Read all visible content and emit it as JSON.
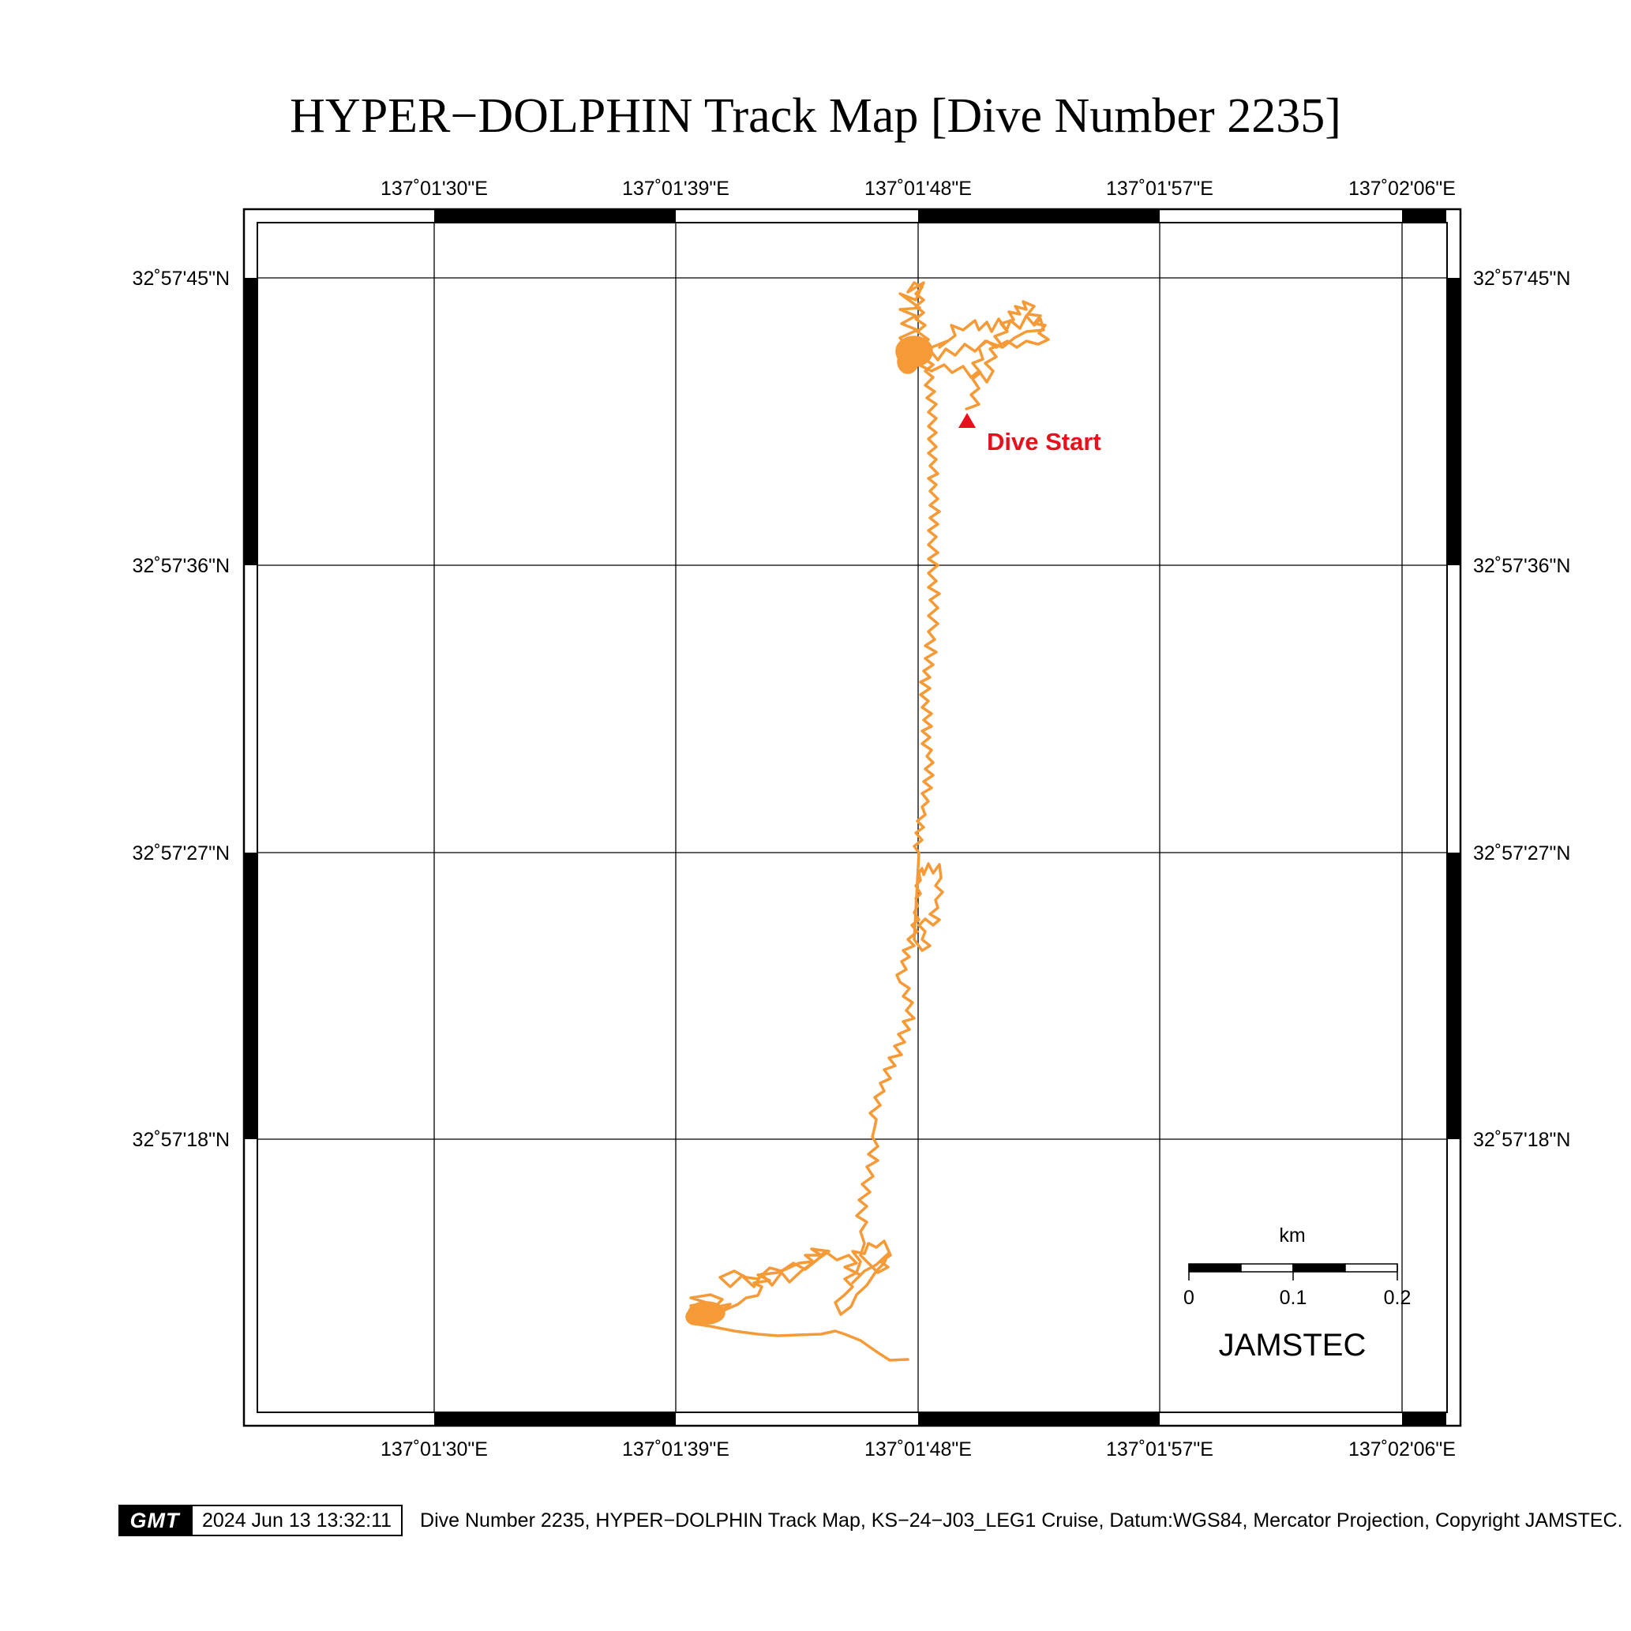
{
  "title": "HYPER−DOLPHIN Track Map [Dive Number 2235]",
  "colors": {
    "track": "#f59a36",
    "start_marker": "#e8101a",
    "frame": "#000000",
    "grid": "#000000"
  },
  "longitude_labels": [
    "137˚01'30\"E",
    "137˚01'39\"E",
    "137˚01'48\"E",
    "137˚01'57\"E",
    "137˚02'06\"E"
  ],
  "latitude_labels": [
    "32˚57'45\"N",
    "32˚57'36\"N",
    "32˚57'27\"N",
    "32˚57'18\"N"
  ],
  "start_label": "Dive Start",
  "scale_bar": {
    "unit": "km",
    "ticks": [
      "0",
      "0.1",
      "0.2"
    ]
  },
  "agency": "JAMSTEC",
  "footer": {
    "logo": "GMT",
    "timestamp": "2024 Jun 13 13:32:11",
    "caption": "Dive Number 2235, HYPER−DOLPHIN Track Map, KS−24−J03_LEG1 Cruise, Datum:WGS84, Mercator Projection, Copyright JAMSTEC."
  }
}
